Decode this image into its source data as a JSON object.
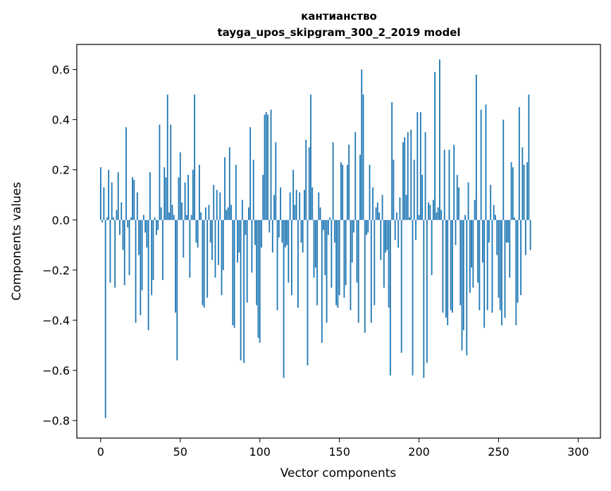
{
  "chart_data": {
    "type": "bar",
    "title": "кантианство",
    "subtitle": "tayga_upos_skipgram_300_2_2019 model",
    "xlabel": "Vector components",
    "ylabel": "Components values",
    "xlim": [
      -15,
      314
    ],
    "ylim": [
      -0.87,
      0.7
    ],
    "xticks": [
      0,
      50,
      100,
      150,
      200,
      250,
      300
    ],
    "xtick_labels": [
      "0",
      "50",
      "100",
      "150",
      "200",
      "250",
      "300"
    ],
    "yticks": [
      0.6,
      0.4,
      0.2,
      0.0,
      -0.2,
      -0.4,
      -0.6,
      -0.8
    ],
    "ytick_labels": [
      "0.6",
      "0.4",
      "0.2",
      "0.0",
      "−0.2",
      "−0.4",
      "−0.6",
      "−0.8"
    ],
    "bar_color": "#1f77b4",
    "grid": false,
    "values": [
      0.21,
      -0.01,
      0.13,
      -0.79,
      0.01,
      0.2,
      -0.25,
      0.15,
      0.01,
      -0.27,
      0.04,
      0.19,
      -0.06,
      0.07,
      -0.12,
      -0.26,
      0.37,
      -0.03,
      -0.22,
      0.01,
      0.17,
      0.16,
      -0.41,
      0.11,
      -0.14,
      -0.38,
      -0.28,
      0.02,
      -0.05,
      -0.11,
      -0.44,
      0.19,
      -0.3,
      -0.24,
      0.01,
      -0.06,
      -0.04,
      0.38,
      0.05,
      -0.24,
      0.21,
      0.17,
      0.5,
      0.03,
      0.38,
      0.06,
      0.02,
      -0.37,
      -0.56,
      0.17,
      0.27,
      0.07,
      -0.15,
      0.15,
      0.02,
      0.18,
      -0.23,
      0.02,
      0.2,
      0.5,
      -0.09,
      -0.11,
      0.22,
      0.03,
      -0.34,
      -0.35,
      0.05,
      -0.31,
      0.06,
      -0.09,
      -0.16,
      0.14,
      -0.23,
      0.12,
      -0.18,
      0.11,
      -0.3,
      -0.2,
      0.25,
      0.04,
      0.05,
      0.29,
      0.06,
      -0.42,
      -0.43,
      0.22,
      -0.17,
      -0.13,
      -0.56,
      0.08,
      -0.57,
      -0.06,
      -0.33,
      0.05,
      0.37,
      -0.21,
      0.24,
      -0.1,
      -0.34,
      -0.47,
      -0.49,
      -0.11,
      0.18,
      0.42,
      0.43,
      0.42,
      -0.05,
      0.44,
      -0.13,
      0.1,
      0.31,
      -0.36,
      -0.07,
      0.13,
      -0.09,
      -0.63,
      -0.11,
      -0.1,
      -0.25,
      0.11,
      -0.3,
      0.2,
      0.06,
      0.12,
      -0.35,
      0.11,
      -0.09,
      -0.13,
      0.12,
      0.32,
      -0.58,
      0.29,
      0.5,
      0.13,
      -0.23,
      -0.19,
      -0.34,
      0.11,
      0.05,
      -0.49,
      -0.04,
      -0.22,
      -0.41,
      -0.06,
      0.01,
      -0.27,
      0.31,
      -0.09,
      -0.34,
      -0.35,
      -0.3,
      0.23,
      0.22,
      -0.31,
      -0.26,
      0.22,
      0.3,
      -0.36,
      -0.17,
      -0.05,
      0.35,
      -0.25,
      -0.41,
      0.26,
      0.6,
      0.5,
      -0.45,
      -0.06,
      -0.05,
      0.22,
      -0.41,
      0.13,
      -0.34,
      0.05,
      0.07,
      0.03,
      -0.16,
      0.1,
      -0.27,
      -0.13,
      -0.12,
      -0.35,
      -0.62,
      0.47,
      0.24,
      -0.08,
      0.03,
      -0.11,
      0.09,
      -0.53,
      0.31,
      0.33,
      0.1,
      0.35,
      0.01,
      0.36,
      -0.62,
      0.24,
      -0.08,
      0.43,
      0.02,
      0.43,
      0.18,
      -0.63,
      0.35,
      -0.57,
      0.07,
      0.06,
      -0.22,
      0.08,
      0.59,
      0.03,
      0.05,
      0.64,
      0.04,
      -0.37,
      0.28,
      -0.39,
      -0.42,
      0.28,
      -0.36,
      -0.37,
      0.3,
      -0.1,
      0.18,
      0.13,
      -0.34,
      -0.52,
      -0.44,
      0.02,
      -0.54,
      0.15,
      -0.29,
      -0.19,
      -0.27,
      0.08,
      0.58,
      -0.25,
      -0.36,
      0.44,
      -0.17,
      -0.43,
      0.46,
      -0.36,
      -0.09,
      0.14,
      -0.37,
      0.06,
      0.02,
      -0.14,
      -0.31,
      -0.36,
      -0.42,
      0.4,
      -0.39,
      -0.09,
      -0.09,
      -0.23,
      0.23,
      0.21,
      0.01,
      -0.42,
      -0.33,
      0.45,
      -0.3,
      0.29,
      0.22,
      -0.14,
      0.23,
      0.5,
      -0.12
    ]
  }
}
